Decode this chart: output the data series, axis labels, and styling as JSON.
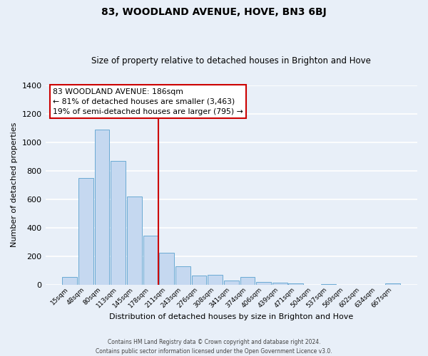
{
  "title": "83, WOODLAND AVENUE, HOVE, BN3 6BJ",
  "subtitle": "Size of property relative to detached houses in Brighton and Hove",
  "xlabel": "Distribution of detached houses by size in Brighton and Hove",
  "ylabel": "Number of detached properties",
  "bar_labels": [
    "15sqm",
    "48sqm",
    "80sqm",
    "113sqm",
    "145sqm",
    "178sqm",
    "211sqm",
    "243sqm",
    "276sqm",
    "308sqm",
    "341sqm",
    "374sqm",
    "406sqm",
    "439sqm",
    "471sqm",
    "504sqm",
    "537sqm",
    "569sqm",
    "602sqm",
    "634sqm",
    "667sqm"
  ],
  "bar_values": [
    55,
    750,
    1090,
    870,
    620,
    345,
    225,
    130,
    65,
    70,
    30,
    55,
    20,
    15,
    10,
    0,
    5,
    0,
    0,
    0,
    10
  ],
  "bar_color": "#c5d8f0",
  "bar_edge_color": "#6aaad4",
  "vline_color": "#cc0000",
  "annotation_title": "83 WOODLAND AVENUE: 186sqm",
  "annotation_line1": "← 81% of detached houses are smaller (3,463)",
  "annotation_line2": "19% of semi-detached houses are larger (795) →",
  "annotation_box_color": "#ffffff",
  "annotation_box_edge": "#cc0000",
  "ylim": [
    0,
    1400
  ],
  "yticks": [
    0,
    200,
    400,
    600,
    800,
    1000,
    1200,
    1400
  ],
  "bg_color": "#e8eff8",
  "grid_color": "#ffffff",
  "footer1": "Contains HM Land Registry data © Crown copyright and database right 2024.",
  "footer2": "Contains public sector information licensed under the Open Government Licence v3.0."
}
